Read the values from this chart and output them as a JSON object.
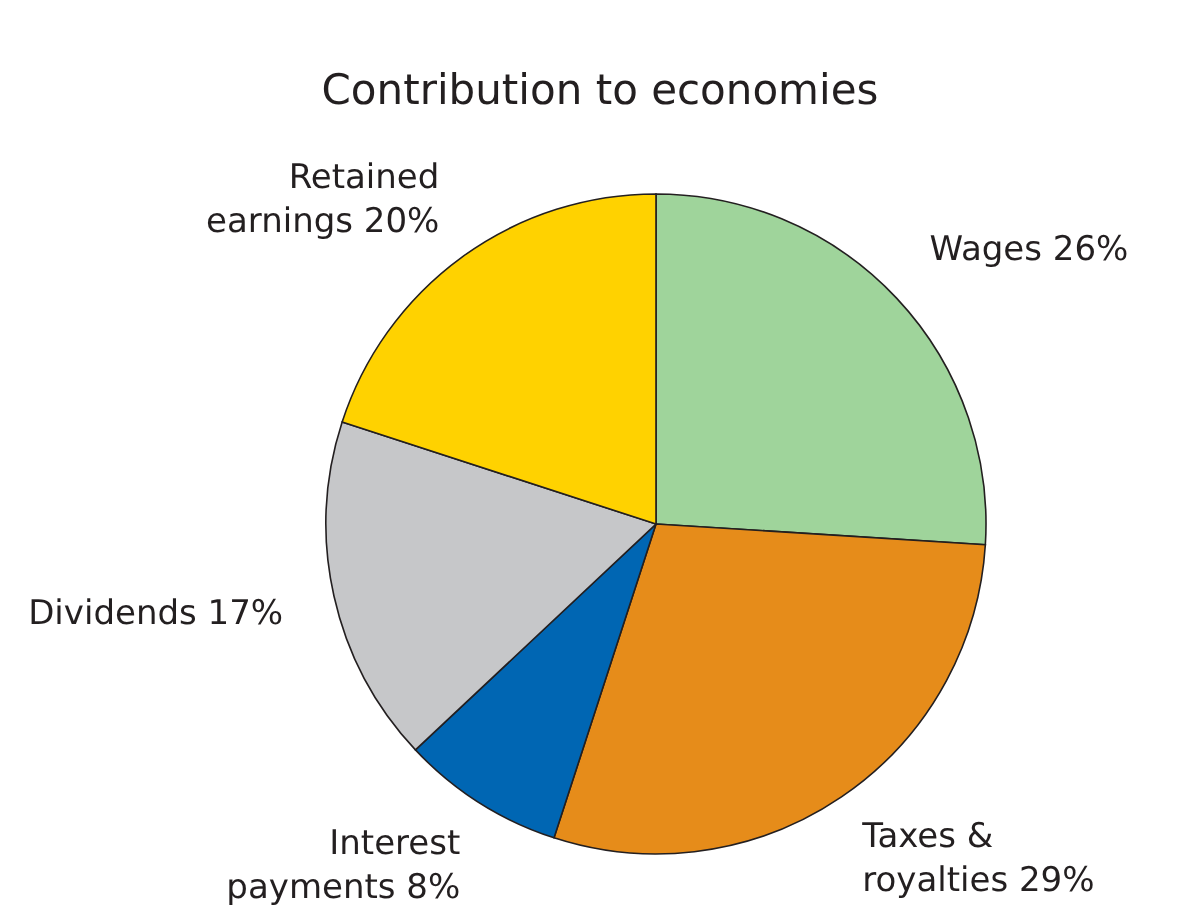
{
  "chart_data": {
    "type": "pie",
    "title": "Contribution to economies",
    "categories": [
      "Wages",
      "Taxes & royalties",
      "Interest payments",
      "Dividends",
      "Retained earnings"
    ],
    "values": [
      26,
      29,
      8,
      17,
      20
    ],
    "value_labels": [
      "26%",
      "29%",
      "8%",
      "17%",
      "20%"
    ],
    "colors": [
      "#9fd49b",
      "#e68c1a",
      "#0066b3",
      "#c6c7c9",
      "#ffd200"
    ]
  }
}
